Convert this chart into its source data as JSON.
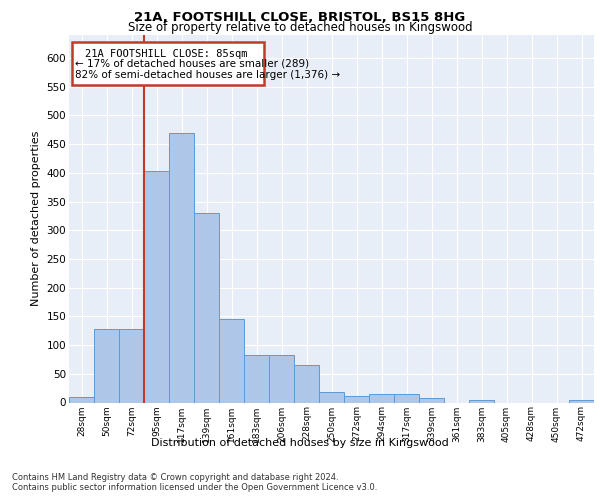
{
  "title1": "21A, FOOTSHILL CLOSE, BRISTOL, BS15 8HG",
  "title2": "Size of property relative to detached houses in Kingswood",
  "xlabel": "Distribution of detached houses by size in Kingswood",
  "ylabel": "Number of detached properties",
  "footer1": "Contains HM Land Registry data © Crown copyright and database right 2024.",
  "footer2": "Contains public sector information licensed under the Open Government Licence v3.0.",
  "annotation_title": "21A FOOTSHILL CLOSE: 85sqm",
  "annotation_line1": "← 17% of detached houses are smaller (289)",
  "annotation_line2": "82% of semi-detached houses are larger (1,376) →",
  "bar_color": "#aec6e8",
  "bar_edge_color": "#5b9bd5",
  "ref_line_color": "#c0392b",
  "annotation_box_color": "#c0392b",
  "categories": [
    "28sqm",
    "50sqm",
    "72sqm",
    "95sqm",
    "117sqm",
    "139sqm",
    "161sqm",
    "183sqm",
    "206sqm",
    "228sqm",
    "250sqm",
    "272sqm",
    "294sqm",
    "317sqm",
    "339sqm",
    "361sqm",
    "383sqm",
    "405sqm",
    "428sqm",
    "450sqm",
    "472sqm"
  ],
  "values": [
    9,
    128,
    128,
    403,
    470,
    330,
    145,
    83,
    83,
    65,
    18,
    11,
    14,
    14,
    7,
    0,
    5,
    0,
    0,
    0,
    5
  ],
  "ylim": [
    0,
    640
  ],
  "yticks": [
    0,
    50,
    100,
    150,
    200,
    250,
    300,
    350,
    400,
    450,
    500,
    550,
    600
  ],
  "background_color": "#e8eef7"
}
